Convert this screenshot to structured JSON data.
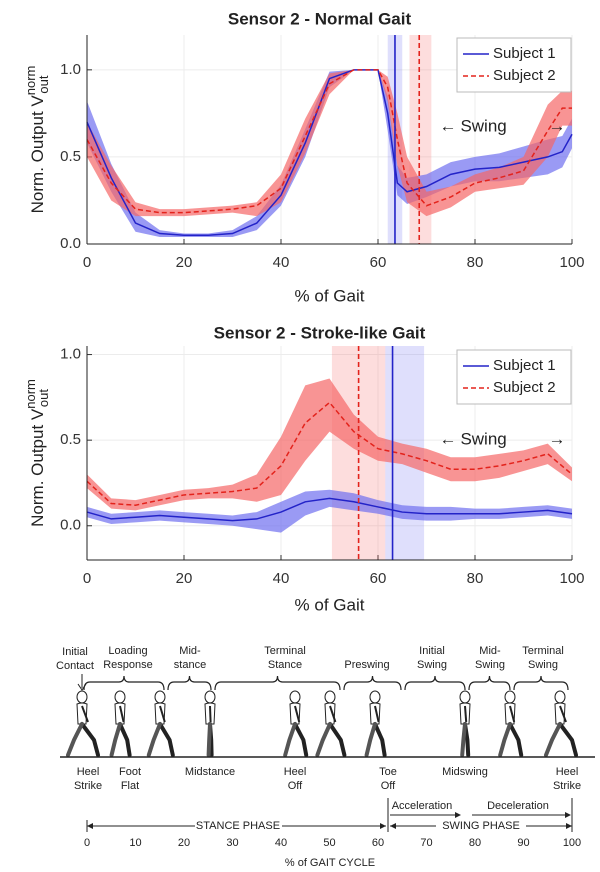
{
  "chart_data": [
    {
      "type": "line",
      "title": "Sensor 2 - Normal Gait",
      "xlabel": "% of Gait",
      "ylabel": [
        "Norm. Output V",
        "norm",
        "out"
      ],
      "x": [
        0,
        5,
        10,
        15,
        20,
        25,
        30,
        35,
        40,
        45,
        50,
        55,
        60,
        62,
        64,
        66,
        70,
        75,
        80,
        85,
        90,
        95,
        98,
        100
      ],
      "xlim": [
        0,
        100
      ],
      "xticks": [
        0,
        20,
        40,
        60,
        80,
        100
      ],
      "ylim": [
        0,
        1.2
      ],
      "yticks": [
        {
          "value": 0,
          "label": "0.0"
        },
        {
          "value": 0.5,
          "label": "0.5"
        },
        {
          "value": 1,
          "label": "1.0"
        }
      ],
      "grid": true,
      "legend": "upper right",
      "annotation": "Swing",
      "series": [
        {
          "name": "Subject 1",
          "color": "#2323c8",
          "band_color": "#6f6ff0",
          "line_style": "solid",
          "values": [
            0.7,
            0.38,
            0.12,
            0.06,
            0.05,
            0.05,
            0.06,
            0.12,
            0.28,
            0.58,
            0.95,
            1.0,
            1.0,
            0.75,
            0.35,
            0.3,
            0.33,
            0.4,
            0.43,
            0.44,
            0.47,
            0.5,
            0.53,
            0.63
          ],
          "upper": [
            0.82,
            0.46,
            0.18,
            0.08,
            0.06,
            0.06,
            0.08,
            0.16,
            0.34,
            0.66,
            0.99,
            1.0,
            1.0,
            0.85,
            0.45,
            0.38,
            0.4,
            0.47,
            0.5,
            0.52,
            0.56,
            0.6,
            0.62,
            0.72
          ],
          "lower": [
            0.58,
            0.3,
            0.07,
            0.04,
            0.04,
            0.04,
            0.04,
            0.08,
            0.22,
            0.5,
            0.9,
            1.0,
            1.0,
            0.65,
            0.28,
            0.23,
            0.27,
            0.33,
            0.36,
            0.36,
            0.38,
            0.4,
            0.44,
            0.55
          ],
          "toe_off": 63.5,
          "toe_off_band": [
            62,
            65
          ]
        },
        {
          "name": "Subject 2",
          "color": "#e3231c",
          "band_color": "#f56666",
          "line_style": "dashed",
          "values": [
            0.6,
            0.35,
            0.2,
            0.18,
            0.18,
            0.19,
            0.2,
            0.22,
            0.32,
            0.62,
            0.92,
            1.0,
            1.0,
            0.9,
            0.6,
            0.35,
            0.22,
            0.27,
            0.35,
            0.38,
            0.42,
            0.65,
            0.78,
            0.78
          ],
          "upper": [
            0.7,
            0.45,
            0.24,
            0.2,
            0.2,
            0.21,
            0.22,
            0.24,
            0.4,
            0.72,
            0.98,
            1.0,
            1.0,
            0.96,
            0.75,
            0.5,
            0.3,
            0.33,
            0.4,
            0.44,
            0.5,
            0.8,
            0.88,
            0.88
          ],
          "lower": [
            0.5,
            0.25,
            0.16,
            0.16,
            0.16,
            0.17,
            0.18,
            0.16,
            0.24,
            0.52,
            0.86,
            1.0,
            1.0,
            0.82,
            0.45,
            0.24,
            0.16,
            0.21,
            0.3,
            0.32,
            0.34,
            0.5,
            0.68,
            0.68
          ],
          "toe_off": 68.5,
          "toe_off_band": [
            66.5,
            71
          ]
        }
      ]
    },
    {
      "type": "line",
      "title": "Sensor 2 - Stroke-like Gait",
      "xlabel": "% of Gait",
      "ylabel": [
        "Norm. Output V",
        "norm",
        "out"
      ],
      "x": [
        0,
        5,
        10,
        15,
        20,
        25,
        30,
        35,
        40,
        45,
        50,
        55,
        60,
        65,
        70,
        75,
        80,
        85,
        90,
        95,
        100
      ],
      "xlim": [
        0,
        100
      ],
      "xticks": [
        0,
        20,
        40,
        60,
        80,
        100
      ],
      "ylim": [
        -0.2,
        1.05
      ],
      "yticks": [
        {
          "value": 0,
          "label": "0.0"
        },
        {
          "value": 0.5,
          "label": "0.5"
        },
        {
          "value": 1,
          "label": "1.0"
        }
      ],
      "grid": true,
      "legend": "upper right",
      "annotation": "Swing",
      "series": [
        {
          "name": "Subject 1",
          "color": "#2323c8",
          "band_color": "#6f6ff0",
          "line_style": "solid",
          "values": [
            0.08,
            0.04,
            0.05,
            0.06,
            0.05,
            0.04,
            0.03,
            0.04,
            0.08,
            0.14,
            0.16,
            0.14,
            0.11,
            0.08,
            0.07,
            0.07,
            0.07,
            0.07,
            0.08,
            0.09,
            0.07
          ],
          "upper": [
            0.11,
            0.07,
            0.08,
            0.09,
            0.08,
            0.07,
            0.06,
            0.08,
            0.14,
            0.2,
            0.21,
            0.19,
            0.15,
            0.12,
            0.11,
            0.11,
            0.1,
            0.1,
            0.11,
            0.12,
            0.1
          ],
          "lower": [
            0.05,
            0.01,
            0.02,
            0.03,
            0.02,
            0.01,
            0.0,
            -0.02,
            -0.04,
            0.06,
            0.11,
            0.09,
            0.07,
            0.04,
            0.03,
            0.03,
            0.04,
            0.04,
            0.05,
            0.06,
            0.04
          ],
          "toe_off": 63,
          "toe_off_band": [
            61.5,
            69.5
          ]
        },
        {
          "name": "Subject 2",
          "color": "#e3231c",
          "band_color": "#f56666",
          "line_style": "dashed",
          "values": [
            0.26,
            0.13,
            0.12,
            0.15,
            0.18,
            0.19,
            0.2,
            0.22,
            0.35,
            0.6,
            0.72,
            0.55,
            0.45,
            0.42,
            0.38,
            0.33,
            0.33,
            0.35,
            0.38,
            0.42,
            0.3
          ],
          "upper": [
            0.3,
            0.16,
            0.15,
            0.18,
            0.21,
            0.22,
            0.24,
            0.3,
            0.52,
            0.82,
            0.86,
            0.65,
            0.52,
            0.48,
            0.45,
            0.4,
            0.4,
            0.42,
            0.44,
            0.48,
            0.34
          ],
          "lower": [
            0.22,
            0.1,
            0.09,
            0.12,
            0.15,
            0.16,
            0.16,
            0.14,
            0.18,
            0.38,
            0.55,
            0.45,
            0.38,
            0.36,
            0.31,
            0.26,
            0.26,
            0.28,
            0.32,
            0.36,
            0.26
          ],
          "toe_off": 56,
          "toe_off_band": [
            50.5,
            61.5
          ]
        }
      ]
    }
  ],
  "gait_diagram": {
    "phases": [
      [
        "Initial",
        "Contact"
      ],
      [
        "Loading",
        "Response"
      ],
      [
        "Mid-",
        "stance"
      ],
      [
        "Terminal",
        "Stance"
      ],
      [
        "Preswing"
      ],
      [
        "Initial",
        "Swing"
      ],
      [
        "Mid-",
        "Swing"
      ],
      [
        "Terminal",
        "Swing"
      ]
    ],
    "events": [
      [
        "Heel",
        "Strike"
      ],
      [
        "Foot",
        "Flat"
      ],
      [
        "Midstance"
      ],
      [
        "Heel",
        "Off"
      ],
      [
        "Toe",
        "Off"
      ],
      [
        "Midswing"
      ],
      [
        "Heel",
        "Strike"
      ]
    ],
    "acceleration": "Acceleration",
    "deceleration": "Deceleration",
    "stance_phase": "STANCE PHASE",
    "swing_phase": "SWING PHASE",
    "axis_ticks": [
      0,
      10,
      20,
      30,
      40,
      50,
      60,
      70,
      80,
      90,
      100
    ],
    "axis_label": "% of GAIT CYCLE"
  }
}
